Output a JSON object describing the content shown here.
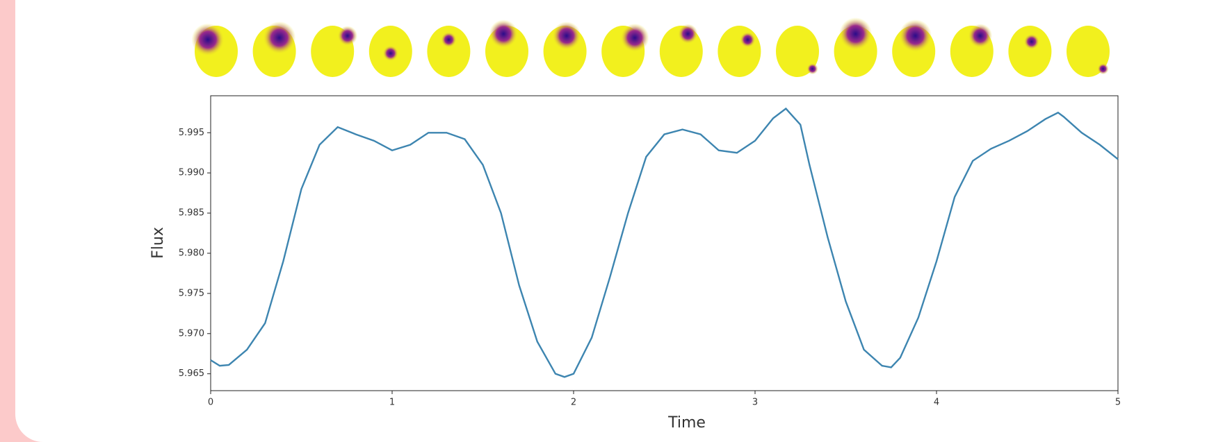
{
  "chart_data": {
    "type": "line",
    "xlabel": "Time",
    "ylabel": "Flux",
    "x": [
      0,
      0.05,
      0.1,
      0.2,
      0.3,
      0.4,
      0.5,
      0.6,
      0.7,
      0.8,
      0.9,
      1.0,
      1.1,
      1.2,
      1.3,
      1.4,
      1.5,
      1.6,
      1.7,
      1.8,
      1.9,
      1.95,
      2.0,
      2.1,
      2.2,
      2.3,
      2.4,
      2.5,
      2.6,
      2.7,
      2.8,
      2.9,
      3.0,
      3.1,
      3.17,
      3.25,
      3.3,
      3.4,
      3.5,
      3.6,
      3.7,
      3.75,
      3.8,
      3.9,
      4.0,
      4.1,
      4.2,
      4.3,
      4.4,
      4.5,
      4.6,
      4.67,
      4.7,
      4.8,
      4.9,
      5.0
    ],
    "series": [
      {
        "color": "#3d85b0",
        "values": [
          5.9667,
          5.966,
          5.9661,
          5.968,
          5.9713,
          5.979,
          5.988,
          5.9935,
          5.9957,
          5.9948,
          5.994,
          5.9928,
          5.9935,
          5.995,
          5.995,
          5.9942,
          5.991,
          5.985,
          5.976,
          5.969,
          5.965,
          5.9646,
          5.965,
          5.9695,
          5.977,
          5.985,
          5.992,
          5.9948,
          5.9954,
          5.9948,
          5.9928,
          5.9925,
          5.994,
          5.9968,
          5.998,
          5.996,
          5.991,
          5.982,
          5.974,
          5.968,
          5.966,
          5.9658,
          5.967,
          5.972,
          5.979,
          5.987,
          5.9915,
          5.993,
          5.994,
          5.9952,
          5.9967,
          5.9975,
          5.997,
          5.995,
          5.9935,
          5.9917
        ]
      }
    ],
    "xlim": [
      0,
      5
    ],
    "xticks": [
      0,
      1,
      2,
      3,
      4,
      5
    ],
    "ylim": [
      5.9629,
      5.9996
    ],
    "yticks": [
      5.965,
      {
        "value": 5.97,
        "label": "5.970"
      },
      5.975,
      {
        "value": 5.98,
        "label": "5.980"
      },
      5.985,
      {
        "value": 5.99,
        "label": "5.990"
      },
      5.995
    ]
  }
}
